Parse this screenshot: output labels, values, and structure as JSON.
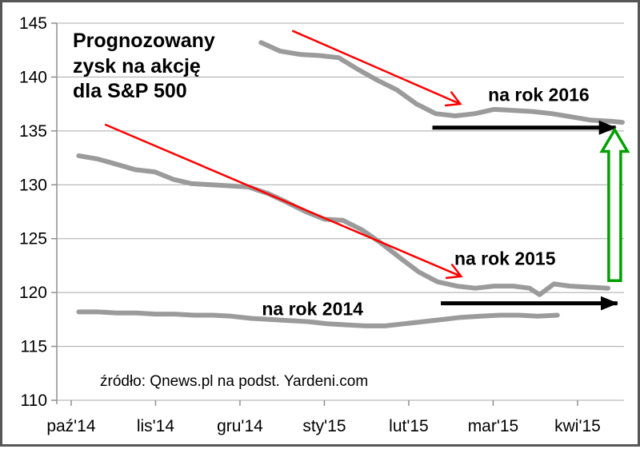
{
  "frame": {
    "border_color": "#565656",
    "background": "#ffffff"
  },
  "chart_data": {
    "type": "line",
    "title": "Prognozowany zysk na akcję dla S&P 500",
    "source_note": "źródło: Qnews.pl na podst. Yardeni.com",
    "x_tick_labels": [
      "paź'14",
      "lis'14",
      "gru'14",
      "sty'15",
      "lut'15",
      "mar'15",
      "kwi'15"
    ],
    "y_ticks": [
      110,
      115,
      120,
      125,
      130,
      135,
      140,
      145
    ],
    "ylim": [
      110,
      145
    ],
    "xlim": [
      -0.17,
      6.55
    ],
    "x_unit": "months, 0 = paź'14",
    "grid": true,
    "legend": "none",
    "line_color": "#9b9b9b",
    "axis_color": "#8f8f8f",
    "grid_color": "#a8a8a8",
    "text_color": "#000000",
    "series": [
      {
        "name": "na rok 2016",
        "x": [
          2.25,
          2.48,
          2.71,
          2.94,
          3.17,
          3.4,
          3.63,
          3.86,
          4.09,
          4.32,
          4.55,
          4.78,
          5.01,
          5.24,
          5.47,
          5.7,
          5.93,
          6.16,
          6.39,
          6.53
        ],
        "values": [
          143.2,
          142.4,
          142.1,
          142.0,
          141.8,
          140.7,
          139.7,
          138.8,
          137.5,
          136.6,
          136.4,
          136.6,
          137.0,
          136.9,
          136.8,
          136.6,
          136.3,
          136.0,
          135.9,
          135.8
        ]
      },
      {
        "name": "na rok 2015",
        "x": [
          0.09,
          0.31,
          0.54,
          0.76,
          0.99,
          1.21,
          1.43,
          1.66,
          1.88,
          2.1,
          2.33,
          2.55,
          2.78,
          3.0,
          3.22,
          3.45,
          3.67,
          3.9,
          4.12,
          4.34,
          4.57,
          4.79,
          5.01,
          5.24,
          5.43,
          5.55,
          5.72,
          5.91,
          6.13,
          6.36
        ],
        "values": [
          132.7,
          132.4,
          131.9,
          131.4,
          131.2,
          130.5,
          130.1,
          130.0,
          129.9,
          129.8,
          129.2,
          128.4,
          127.5,
          126.8,
          126.7,
          125.8,
          124.6,
          123.2,
          121.9,
          121.0,
          120.6,
          120.4,
          120.6,
          120.6,
          120.4,
          119.8,
          120.8,
          120.6,
          120.5,
          120.4
        ]
      },
      {
        "name": "na rok 2014",
        "x": [
          0.09,
          0.32,
          0.54,
          0.77,
          1.0,
          1.22,
          1.45,
          1.68,
          1.9,
          2.13,
          2.36,
          2.58,
          2.81,
          3.04,
          3.26,
          3.49,
          3.72,
          3.94,
          4.17,
          4.4,
          4.62,
          4.85,
          5.08,
          5.3,
          5.53,
          5.76
        ],
        "values": [
          118.2,
          118.2,
          118.1,
          118.1,
          118.0,
          118.0,
          117.9,
          117.9,
          117.8,
          117.6,
          117.5,
          117.4,
          117.3,
          117.1,
          117.0,
          116.9,
          116.9,
          117.1,
          117.3,
          117.5,
          117.7,
          117.8,
          117.9,
          117.9,
          117.8,
          117.9
        ]
      }
    ],
    "series_labels": [
      {
        "text": "na rok 2016",
        "x": 5.54,
        "y": 138.3
      },
      {
        "text": "na rok 2015",
        "x": 5.14,
        "y": 123.1
      },
      {
        "text": "na rok 2014",
        "x": 2.86,
        "y": 118.45
      }
    ],
    "annotations": {
      "red_color": "#ff0000",
      "black_color": "#000000",
      "green_color": "#00a000",
      "red_trend_arrows": [
        {
          "x1": 2.62,
          "y1": 144.3,
          "x2": 4.61,
          "y2": 137.5
        },
        {
          "x1": 0.4,
          "y1": 135.6,
          "x2": 4.62,
          "y2": 121.5
        }
      ],
      "black_level_arrows": [
        {
          "x1": 4.28,
          "x2": 6.49,
          "y": 135.3
        },
        {
          "x1": 4.38,
          "x2": 6.51,
          "y": 119.0
        }
      ],
      "green_up_arrow": {
        "x": 6.44,
        "y_from": 121.1,
        "y_to": 135.1
      }
    }
  }
}
